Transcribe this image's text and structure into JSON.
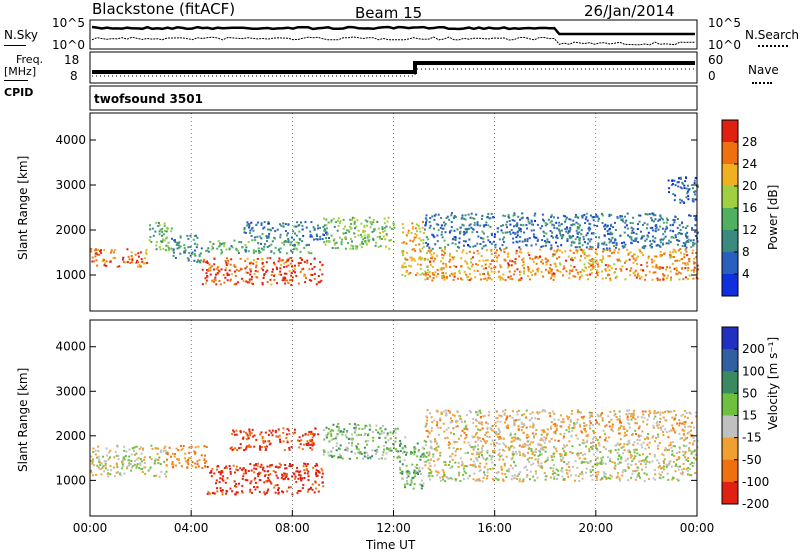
{
  "header": {
    "station": "Blackstone (fitACF)",
    "beam": "Beam 15",
    "date": "26/Jan/2014"
  },
  "noise_panel": {
    "left_label": "N.Sky",
    "right_label": "N.Search",
    "left_ticks": [
      "10^5",
      "10^0"
    ],
    "right_ticks": [
      "10^5",
      "10^0"
    ]
  },
  "freq_panel": {
    "left_label_top": "Freq.",
    "left_label_unit": "[MHz]",
    "left_ticks": [
      "18",
      "8"
    ],
    "right_label": "Nave",
    "right_ticks": [
      "60",
      "0"
    ],
    "cpid_label": "CPID",
    "cpid_value": "twofsound 3501"
  },
  "chart_data": [
    {
      "type": "heatmap",
      "quantity": "power",
      "ylabel": "Slant Range [km]",
      "ylim": [
        200,
        4600
      ],
      "yticks": [
        "4000",
        "3000",
        "2000",
        "1000"
      ],
      "xlim": [
        0,
        24
      ],
      "colorbar_label": "Power [dB]",
      "colorbar_ticks": [
        "28",
        "24",
        "20",
        "16",
        "12",
        "8",
        "4"
      ],
      "colorbar_range": [
        0,
        32
      ],
      "colors": [
        "#1030e0",
        "#2860c0",
        "#3a8a80",
        "#50b060",
        "#a0d040",
        "#f0b020",
        "#f07010",
        "#e02010"
      ],
      "bands": [
        {
          "t": [
            0.0,
            2.3
          ],
          "r": [
            1200,
            1600
          ],
          "value": 26
        },
        {
          "t": [
            2.3,
            3.2
          ],
          "r": [
            1500,
            2200
          ],
          "value": 14
        },
        {
          "t": [
            3.2,
            4.4
          ],
          "r": [
            1300,
            1900
          ],
          "value": 10
        },
        {
          "t": [
            4.4,
            9.2
          ],
          "r": [
            800,
            1400
          ],
          "value": 28
        },
        {
          "t": [
            4.5,
            8.8
          ],
          "r": [
            1500,
            1800
          ],
          "value": 12
        },
        {
          "t": [
            6.0,
            9.5
          ],
          "r": [
            1800,
            2200
          ],
          "value": 8
        },
        {
          "t": [
            9.2,
            12.0
          ],
          "r": [
            1600,
            2300
          ],
          "value": 16
        },
        {
          "t": [
            12.3,
            13.2
          ],
          "r": [
            1000,
            2200
          ],
          "value": 22
        },
        {
          "t": [
            13.2,
            24.0
          ],
          "r": [
            900,
            1600
          ],
          "value": 24
        },
        {
          "t": [
            13.2,
            24.0
          ],
          "r": [
            1600,
            2400
          ],
          "value": 8
        },
        {
          "t": [
            22.8,
            24.0
          ],
          "r": [
            2600,
            3200
          ],
          "value": 6
        }
      ]
    },
    {
      "type": "heatmap",
      "quantity": "velocity",
      "ylabel": "Slant Range [km]",
      "ylim": [
        200,
        4600
      ],
      "yticks": [
        "4000",
        "3000",
        "2000",
        "1000"
      ],
      "xlim": [
        0,
        24
      ],
      "xticks": [
        "00:00",
        "04:00",
        "08:00",
        "12:00",
        "16:00",
        "20:00",
        "00:00"
      ],
      "xlabel": "Time UT",
      "colorbar_label": "Velocity [m s⁻¹]",
      "colorbar_ticks": [
        "200",
        "100",
        "50",
        "15",
        "-15",
        "-50",
        "-100",
        "-200"
      ],
      "colors": [
        "#2030c0",
        "#3060a0",
        "#3a8a60",
        "#70c040",
        "#c0c0c0",
        "#f0a030",
        "#f07010",
        "#e02010"
      ],
      "bands": [
        {
          "t": [
            0.0,
            3.0
          ],
          "r": [
            1100,
            1800
          ],
          "value": 0
        },
        {
          "t": [
            3.0,
            4.6
          ],
          "r": [
            1300,
            1800
          ],
          "value": -60
        },
        {
          "t": [
            4.6,
            9.2
          ],
          "r": [
            700,
            1400
          ],
          "value": -120
        },
        {
          "t": [
            5.5,
            9.0
          ],
          "r": [
            1700,
            2200
          ],
          "value": -110
        },
        {
          "t": [
            9.2,
            12.2
          ],
          "r": [
            1500,
            2300
          ],
          "value": 30
        },
        {
          "t": [
            12.2,
            13.2
          ],
          "r": [
            800,
            2000
          ],
          "value": 40
        },
        {
          "t": [
            13.2,
            24.0
          ],
          "r": [
            1000,
            1800
          ],
          "value": 0
        },
        {
          "t": [
            13.2,
            24.0
          ],
          "r": [
            1800,
            2600
          ],
          "value": -20
        }
      ]
    }
  ]
}
